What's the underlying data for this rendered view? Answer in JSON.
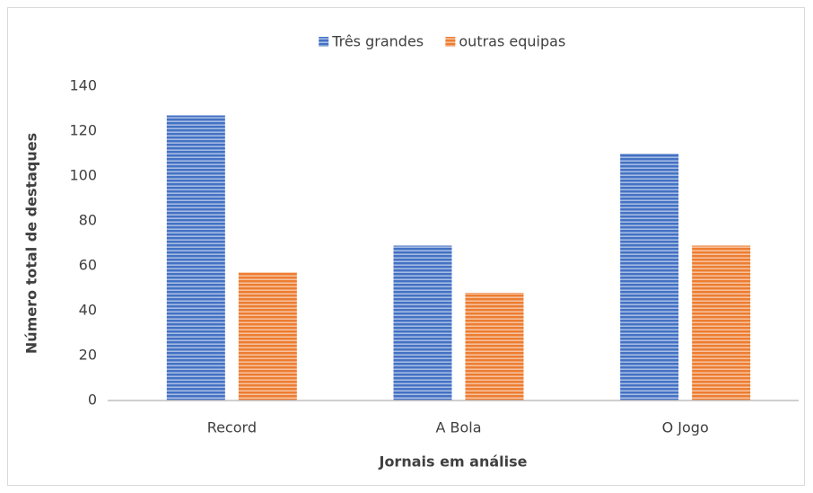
{
  "chart_data": {
    "type": "bar",
    "x_label": "Jornais em análise",
    "y_label": "Número total de destaques",
    "categories": [
      "Record",
      "A Bola",
      "O Jogo"
    ],
    "series": [
      {
        "name": "Três grandes",
        "color": "#4472c4",
        "values": [
          127,
          69,
          110
        ]
      },
      {
        "name": "outras equipas",
        "color": "#ed7d31",
        "values": [
          57,
          48,
          69
        ]
      }
    ],
    "ylim": [
      0,
      140
    ],
    "yticks": [
      0,
      20,
      40,
      60,
      80,
      100,
      120,
      140
    ],
    "grid": false,
    "legend": "top"
  }
}
